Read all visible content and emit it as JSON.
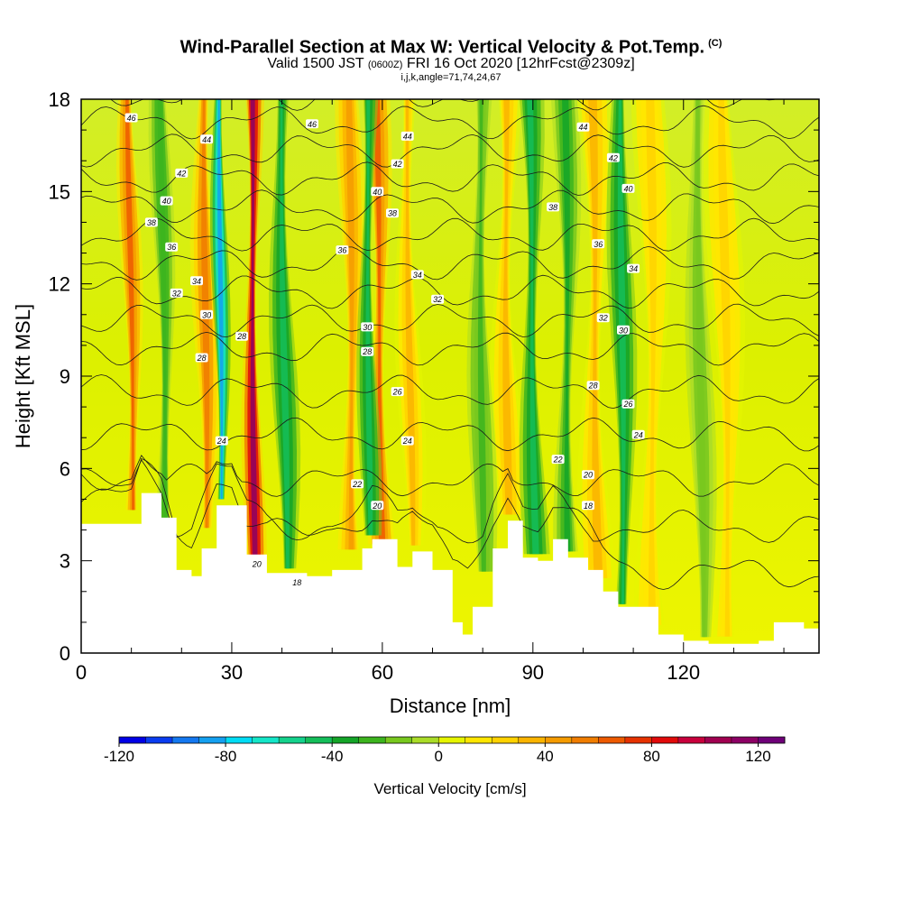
{
  "header": {
    "title": "Wind-Parallel Section at Max W: Vertical Velocity & Pot.Temp.",
    "copyright": "(C)",
    "valid_prefix": "Valid 1500 JST",
    "valid_utc": "(0600Z)",
    "valid_date": "FRI 16 Oct 2020",
    "forecast": "[12hrFcst@2309z]",
    "params": "i,j,k,angle=71,74,24,67"
  },
  "chart_data": {
    "type": "heatmap",
    "xlabel": "Distance [nm]",
    "ylabel": "Height [Kft MSL]",
    "xlim": [
      0,
      147
    ],
    "ylim": [
      0,
      18
    ],
    "x_ticks": [
      0,
      30,
      60,
      90,
      120
    ],
    "y_ticks": [
      0,
      3,
      6,
      9,
      12,
      15,
      18
    ],
    "colorbar": {
      "label": "Vertical Velocity [cm/s]",
      "range": [
        -120,
        130
      ],
      "tick_values": [
        -120,
        -80,
        -40,
        0,
        40,
        80,
        120
      ],
      "tick_labels": [
        "-120",
        "-80",
        "-40",
        "0",
        "40",
        "80",
        "120"
      ],
      "colors": [
        "#0000e6",
        "#0a3cf0",
        "#1478f0",
        "#14a0f0",
        "#00dcf5",
        "#14e6c8",
        "#14d28c",
        "#14be5a",
        "#14a528",
        "#3cb41e",
        "#78c81e",
        "#aadc28",
        "#e6f500",
        "#ffe600",
        "#ffd200",
        "#fab400",
        "#f59b00",
        "#f07d00",
        "#ed5a00",
        "#e63200",
        "#e10a0a",
        "#c8003c",
        "#a00050",
        "#8c0064",
        "#6e0078"
      ]
    },
    "terrain_kft": [
      [
        0,
        4.2
      ],
      [
        10,
        4.2
      ],
      [
        12,
        5.2
      ],
      [
        16,
        4.4
      ],
      [
        19,
        2.7
      ],
      [
        22,
        2.5
      ],
      [
        24,
        3.4
      ],
      [
        27,
        4.8
      ],
      [
        30,
        4.8
      ],
      [
        33,
        3.2
      ],
      [
        37,
        2.6
      ],
      [
        45,
        2.5
      ],
      [
        50,
        2.7
      ],
      [
        56,
        3.4
      ],
      [
        58,
        3.7
      ],
      [
        63,
        2.8
      ],
      [
        66,
        3.3
      ],
      [
        70,
        2.7
      ],
      [
        74,
        1.0
      ],
      [
        76,
        0.6
      ],
      [
        78,
        1.5
      ],
      [
        82,
        3.4
      ],
      [
        85,
        4.3
      ],
      [
        88,
        3.1
      ],
      [
        91,
        3.0
      ],
      [
        94,
        3.7
      ],
      [
        97,
        3.1
      ],
      [
        101,
        2.7
      ],
      [
        104,
        2.0
      ],
      [
        107,
        1.5
      ],
      [
        115,
        0.6
      ],
      [
        120,
        0.4
      ],
      [
        125,
        0.3
      ],
      [
        135,
        0.4
      ],
      [
        138,
        1.0
      ],
      [
        141,
        1.0
      ],
      [
        144,
        0.8
      ],
      [
        147,
        0.8
      ]
    ],
    "updraft_columns": [
      {
        "x": 34.5,
        "width": 2.5,
        "w": 110
      },
      {
        "x": 60.0,
        "width": 3.0,
        "w": 60
      },
      {
        "x": 54.0,
        "width": 3.0,
        "w": 45
      },
      {
        "x": 10.5,
        "width": 2.5,
        "w": 60
      },
      {
        "x": 25.0,
        "width": 3.0,
        "w": 55
      },
      {
        "x": 66.0,
        "width": 3.0,
        "w": 30
      },
      {
        "x": 85.0,
        "width": 3.5,
        "w": 30
      },
      {
        "x": 103.0,
        "width": 4.0,
        "w": 30
      },
      {
        "x": 114.0,
        "width": 4.0,
        "w": 25
      },
      {
        "x": 129.0,
        "width": 4.0,
        "w": 20
      }
    ],
    "downdraft_columns": [
      {
        "x": 28.0,
        "width": 2.0,
        "w": -90
      },
      {
        "x": 41.0,
        "width": 3.0,
        "w": -50
      },
      {
        "x": 57.5,
        "width": 2.5,
        "w": -45
      },
      {
        "x": 90.5,
        "width": 3.0,
        "w": -45
      },
      {
        "x": 97.0,
        "width": 3.0,
        "w": -35
      },
      {
        "x": 17.0,
        "width": 2.5,
        "w": -30
      },
      {
        "x": 108.0,
        "width": 3.0,
        "w": -45
      },
      {
        "x": 124.0,
        "width": 3.0,
        "w": -20
      },
      {
        "x": 80.0,
        "width": 3.0,
        "w": -25
      }
    ],
    "theta_contours": [
      {
        "theta": 18,
        "labels": [
          [
            43,
            2.3
          ],
          [
            101,
            4.8
          ]
        ]
      },
      {
        "theta": 20,
        "labels": [
          [
            35,
            2.9
          ],
          [
            59,
            4.8
          ],
          [
            101,
            5.8
          ]
        ]
      },
      {
        "theta": 22,
        "labels": [
          [
            55,
            5.5
          ],
          [
            95,
            6.3
          ]
        ]
      },
      {
        "theta": 24,
        "labels": [
          [
            28,
            6.9
          ],
          [
            65,
            6.9
          ],
          [
            111,
            7.1
          ]
        ]
      },
      {
        "theta": 26,
        "labels": [
          [
            63,
            8.5
          ],
          [
            109,
            8.1
          ]
        ]
      },
      {
        "theta": 28,
        "labels": [
          [
            24,
            9.6
          ],
          [
            32,
            10.3
          ],
          [
            57,
            9.8
          ],
          [
            102,
            8.7
          ]
        ]
      },
      {
        "theta": 30,
        "labels": [
          [
            25,
            11.0
          ],
          [
            57,
            10.6
          ],
          [
            108,
            10.5
          ]
        ]
      },
      {
        "theta": 32,
        "labels": [
          [
            19,
            11.7
          ],
          [
            71,
            11.5
          ],
          [
            104,
            10.9
          ]
        ]
      },
      {
        "theta": 34,
        "labels": [
          [
            23,
            12.1
          ],
          [
            67,
            12.3
          ],
          [
            110,
            12.5
          ]
        ]
      },
      {
        "theta": 36,
        "labels": [
          [
            18,
            13.2
          ],
          [
            52,
            13.1
          ],
          [
            103,
            13.3
          ]
        ]
      },
      {
        "theta": 38,
        "labels": [
          [
            14,
            14.0
          ],
          [
            62,
            14.3
          ],
          [
            94,
            14.5
          ]
        ]
      },
      {
        "theta": 40,
        "labels": [
          [
            17,
            14.7
          ],
          [
            59,
            15.0
          ],
          [
            109,
            15.1
          ]
        ]
      },
      {
        "theta": 42,
        "labels": [
          [
            20,
            15.6
          ],
          [
            63,
            15.9
          ],
          [
            106,
            16.1
          ]
        ]
      },
      {
        "theta": 44,
        "labels": [
          [
            25,
            16.7
          ],
          [
            65,
            16.8
          ],
          [
            100,
            17.1
          ]
        ]
      },
      {
        "theta": 46,
        "labels": [
          [
            10,
            17.4
          ],
          [
            46,
            17.2
          ]
        ]
      }
    ]
  }
}
